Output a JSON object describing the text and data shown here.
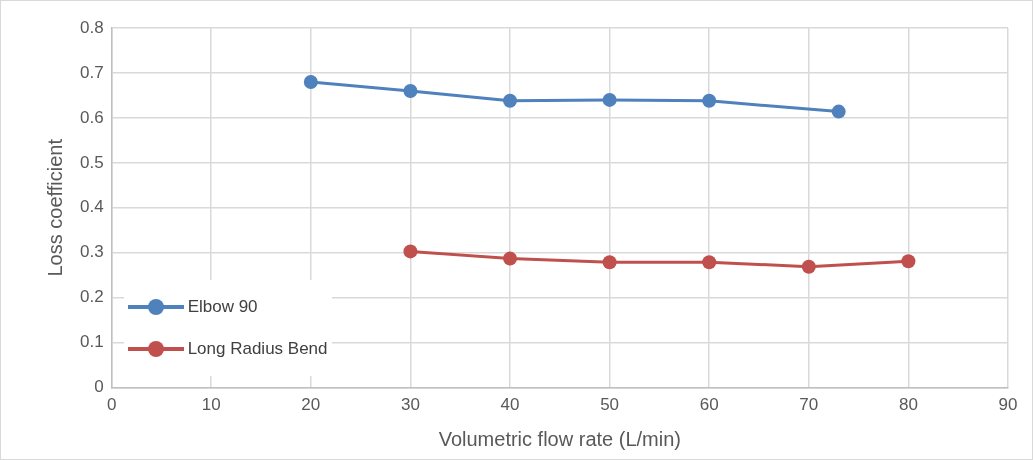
{
  "chart_data": {
    "type": "line",
    "xlabel": "Volumetric flow rate (L/min)",
    "ylabel": "Loss coefficient",
    "xlim": [
      0,
      90
    ],
    "xticks": [
      0,
      10,
      20,
      30,
      40,
      50,
      60,
      70,
      80,
      90
    ],
    "ylim": [
      0,
      0.8
    ],
    "yticks": [
      0,
      0.1,
      0.2,
      0.3,
      0.4,
      0.5,
      0.6,
      0.7,
      0.8
    ],
    "grid": true,
    "legend": "bottom left",
    "marker": "circle",
    "line_style": "solid",
    "series": [
      {
        "name": "Elbow 90",
        "color": "#4f81bd",
        "x": [
          20,
          30,
          40,
          50,
          60,
          73
        ],
        "values": [
          0.68,
          0.66,
          0.638,
          0.64,
          0.638,
          0.614
        ]
      },
      {
        "name": "Long Radius Bend",
        "color": "#c0504d",
        "x": [
          30,
          40,
          50,
          60,
          70,
          80
        ],
        "values": [
          0.303,
          0.287,
          0.279,
          0.279,
          0.269,
          0.281
        ]
      }
    ]
  }
}
